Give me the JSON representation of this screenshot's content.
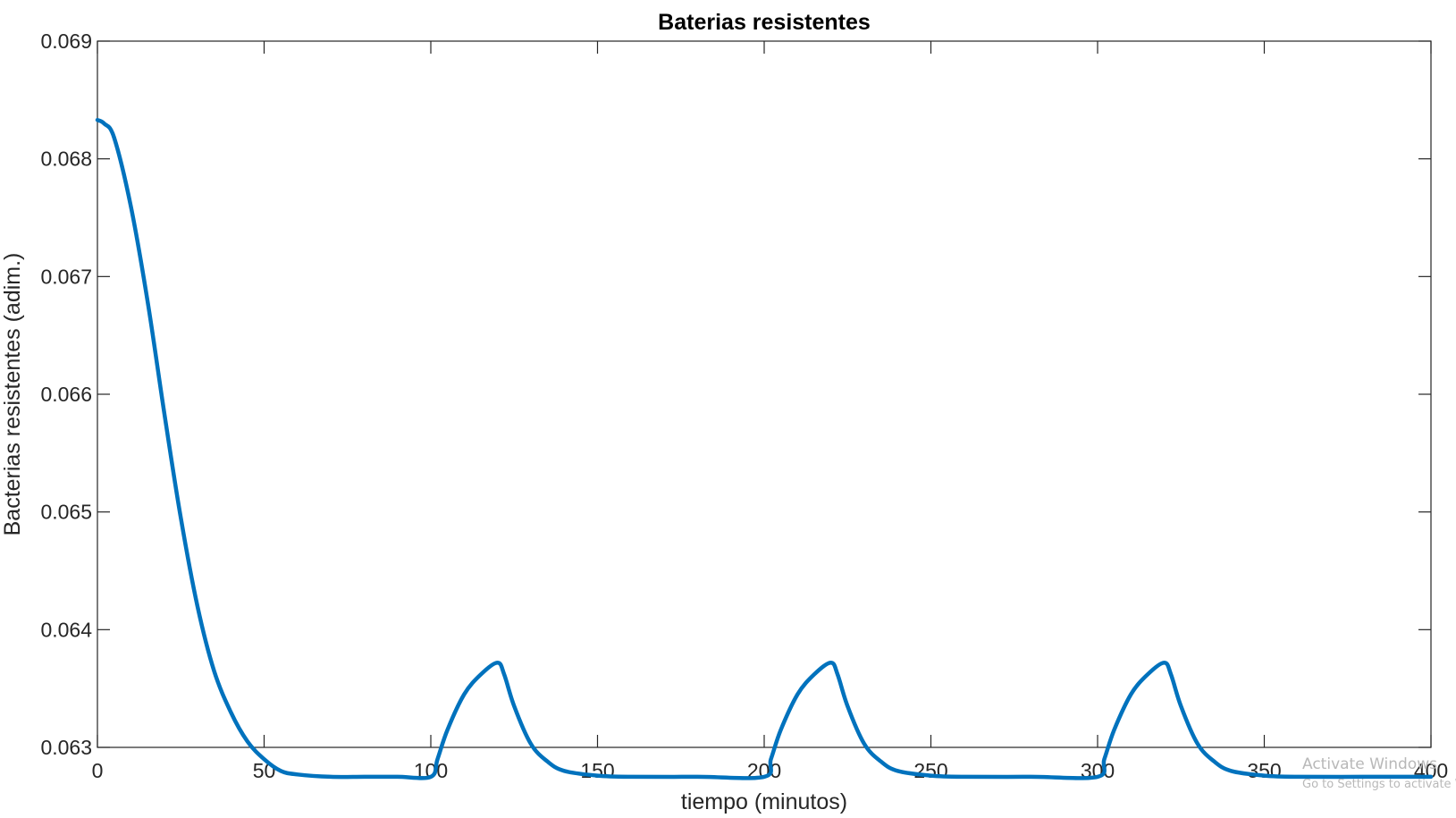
{
  "chart_data": {
    "type": "line",
    "title": "Baterias resistentes",
    "xlabel": "tiempo (minutos)",
    "ylabel": "Bacterias resistentes (adim.)",
    "xlim": [
      0,
      400
    ],
    "ylim": [
      0.063,
      0.069
    ],
    "xticks": [
      0,
      50,
      100,
      150,
      200,
      250,
      300,
      350,
      400
    ],
    "yticks": [
      "0.063",
      "0.064",
      "0.065",
      "0.066",
      "0.067",
      "0.068",
      "0.069"
    ],
    "grid": false,
    "line_color": "#0072BD",
    "series": [
      {
        "x": [
          0,
          2,
          5,
          10,
          15,
          20,
          25,
          30,
          35,
          40,
          45,
          50,
          55,
          60,
          70,
          80,
          90,
          100,
          102,
          105,
          110,
          115,
          120,
          122,
          125,
          130,
          135,
          140,
          150,
          160,
          180,
          200,
          202,
          205,
          210,
          215,
          220,
          222,
          225,
          230,
          235,
          240,
          250,
          260,
          280,
          300,
          302,
          305,
          310,
          315,
          320,
          322,
          325,
          330,
          335,
          340,
          350,
          360,
          380,
          400
        ],
        "y": [
          0.06833,
          0.0683,
          0.06818,
          0.0676,
          0.0668,
          0.06585,
          0.06495,
          0.0642,
          0.06365,
          0.0633,
          0.06305,
          0.0629,
          0.0628,
          0.06277,
          0.06275,
          0.06275,
          0.06275,
          0.06275,
          0.0629,
          0.06315,
          0.06345,
          0.06362,
          0.06372,
          0.06362,
          0.06335,
          0.06303,
          0.06288,
          0.0628,
          0.06276,
          0.06275,
          0.06275,
          0.06275,
          0.0629,
          0.06315,
          0.06345,
          0.06362,
          0.06372,
          0.06362,
          0.06335,
          0.06303,
          0.06288,
          0.0628,
          0.06276,
          0.06275,
          0.06275,
          0.06275,
          0.0629,
          0.06315,
          0.06345,
          0.06362,
          0.06372,
          0.06362,
          0.06335,
          0.06303,
          0.06288,
          0.0628,
          0.06276,
          0.06275,
          0.06275,
          0.06275
        ]
      }
    ]
  },
  "watermark": {
    "line1": "Activate Windows",
    "line2": "Go to Settings to activate Windows."
  }
}
